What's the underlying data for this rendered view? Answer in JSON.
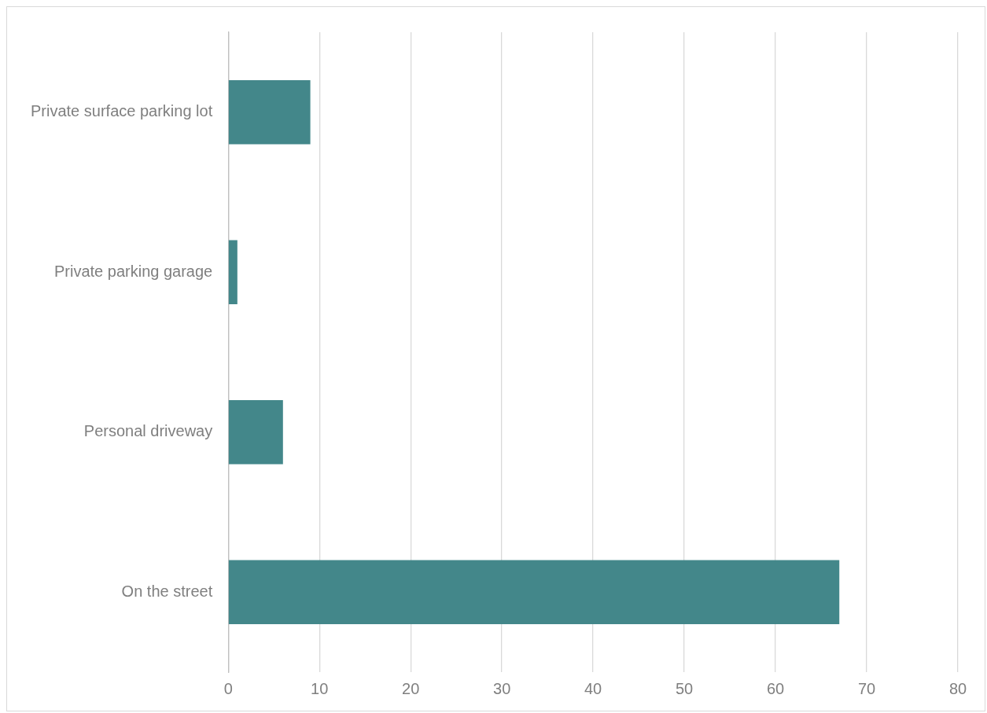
{
  "chart_data": {
    "type": "bar",
    "orientation": "horizontal",
    "categories": [
      "Private surface parking lot",
      "Private parking garage",
      "Personal driveway",
      "On the street"
    ],
    "values": [
      9,
      1,
      6,
      67
    ],
    "color": "#43878a",
    "xlim": [
      0,
      80
    ],
    "xticks": [
      0,
      10,
      20,
      30,
      40,
      50,
      60,
      70,
      80
    ],
    "grid": "x",
    "legend": false
  }
}
